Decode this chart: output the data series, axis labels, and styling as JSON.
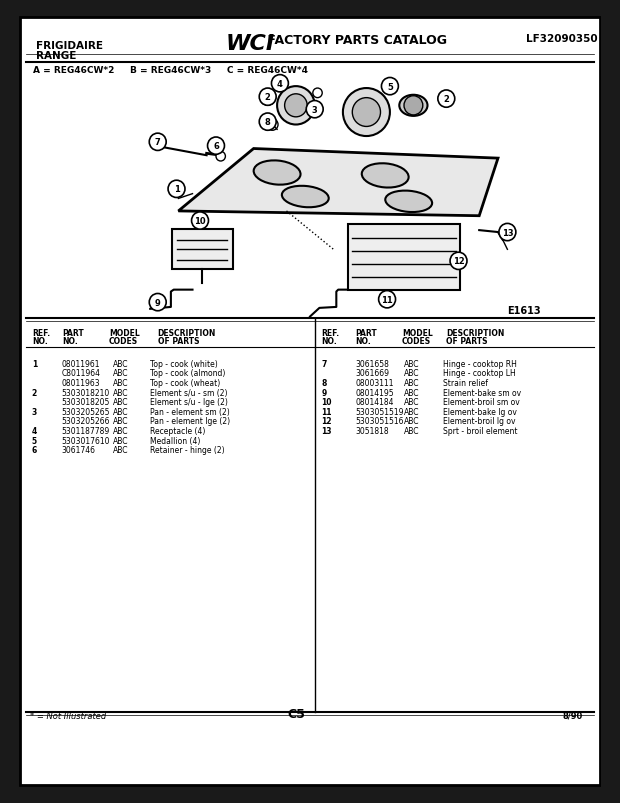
{
  "bg_color": "#ffffff",
  "border_color": "#000000",
  "header": {
    "left_line1": "FRIGIDAIRE",
    "left_line2": "RANGE",
    "center_logo": "WCI",
    "center_text": "FACTORY PARTS CATALOG",
    "right_text": "LF32090350"
  },
  "model_line": "A = REG46CW*2     B = REG46CW*3     C = REG46CW*4",
  "diagram_label": "E1613",
  "table": {
    "left": {
      "headers": [
        "REF.\nNO.",
        "PART\nNO.",
        "MODEL\nCODES",
        "DESCRIPTION\nOF PARTS"
      ],
      "rows": [
        [
          "1",
          "08011961",
          "ABC",
          "Top - cook (white)"
        ],
        [
          "",
          "C8011964",
          "ABC",
          "Top - cook (almond)"
        ],
        [
          "",
          "08011963",
          "ABC",
          "Top - cook (wheat)"
        ],
        [
          "2",
          "5303018210",
          "ABC",
          "Element s/u - sm (2)"
        ],
        [
          "",
          "5303018205",
          "ABC",
          "Element s/u - lge (2)"
        ],
        [
          "3",
          "5303205265",
          "ABC",
          "Pan - element sm (2)"
        ],
        [
          "",
          "5303205266",
          "ABC",
          "Pan - element lge (2)"
        ],
        [
          "4",
          "5301187789",
          "ABC",
          "Receptacle (4)"
        ],
        [
          "5",
          "5303017610",
          "ABC",
          "Medallion (4)"
        ],
        [
          "6",
          "3061746",
          "ABC",
          "Retainer - hinge (2)"
        ]
      ]
    },
    "right": {
      "headers": [
        "REF.\nNO.",
        "PART\nNO.",
        "MODEL\nCODES",
        "DESCRIPTION\nOF PARTS"
      ],
      "rows": [
        [
          "7",
          "3061658",
          "ABC",
          "Hinge - cooktop RH"
        ],
        [
          "",
          "3061669",
          "ABC",
          "Hinge - cooktop LH"
        ],
        [
          "8",
          "08003111",
          "ABC",
          "Strain relief"
        ],
        [
          "9",
          "08014195",
          "ABC",
          "Element-bake sm ov"
        ],
        [
          "10",
          "08014184",
          "ABC",
          "Element-broil sm ov"
        ],
        [
          "11",
          "5303051519",
          "ABC",
          "Element-bake lg ov"
        ],
        [
          "12",
          "5303051516",
          "ABC",
          "Element-broil lg ov"
        ],
        [
          "13",
          "3051818",
          "ABC",
          "Sprt - broil element"
        ]
      ]
    }
  },
  "footer_left": "* = Not Illustrated",
  "footer_center": "C5",
  "footer_right": "8/90"
}
